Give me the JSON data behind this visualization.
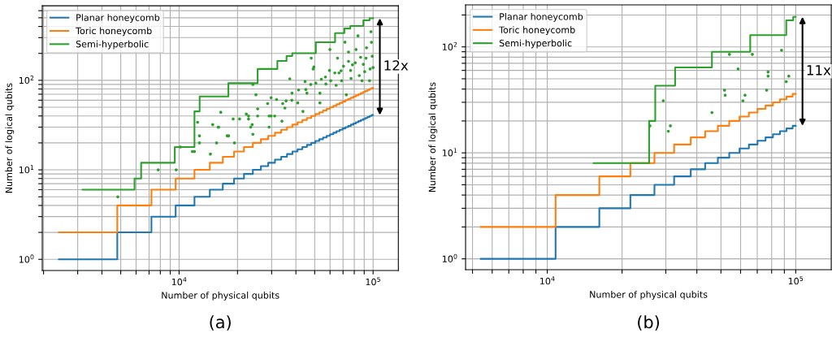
{
  "chart_data": [
    {
      "type": "step",
      "xlabel": "Number of physical qubits",
      "ylabel": "Number of logical qubits",
      "log": "xy",
      "grid": true,
      "legend": "top left",
      "xlim": [
        1970,
        135000
      ],
      "ylim": [
        0.75,
        680
      ],
      "xticks": [
        {
          "value": 2000,
          "label": null
        },
        {
          "value": 3000,
          "label": null
        },
        {
          "value": 4000,
          "label": null
        },
        {
          "value": 5000,
          "label": null
        },
        {
          "value": 6000,
          "label": null
        },
        {
          "value": 7000,
          "label": null
        },
        {
          "value": 8000,
          "label": null
        },
        {
          "value": 9000,
          "label": null
        },
        {
          "value": 10000,
          "label": "10$^{4}$"
        },
        {
          "value": 20000,
          "label": null
        },
        {
          "value": 30000,
          "label": null
        },
        {
          "value": 40000,
          "label": null
        },
        {
          "value": 50000,
          "label": null
        },
        {
          "value": 60000,
          "label": null
        },
        {
          "value": 70000,
          "label": null
        },
        {
          "value": 80000,
          "label": null
        },
        {
          "value": 90000,
          "label": null
        },
        {
          "value": 100000,
          "label": "10$^{5}$"
        }
      ],
      "yticks": [
        {
          "value": 1,
          "label": "10$^{0}$"
        },
        {
          "value": 2,
          "label": null
        },
        {
          "value": 3,
          "label": null
        },
        {
          "value": 4,
          "label": null
        },
        {
          "value": 5,
          "label": null
        },
        {
          "value": 6,
          "label": null
        },
        {
          "value": 7,
          "label": null
        },
        {
          "value": 8,
          "label": null
        },
        {
          "value": 9,
          "label": null
        },
        {
          "value": 10,
          "label": "10$^{1}$"
        },
        {
          "value": 20,
          "label": null
        },
        {
          "value": 30,
          "label": null
        },
        {
          "value": 40,
          "label": null
        },
        {
          "value": 50,
          "label": null
        },
        {
          "value": 60,
          "label": null
        },
        {
          "value": 70,
          "label": null
        },
        {
          "value": 80,
          "label": null
        },
        {
          "value": 90,
          "label": null
        },
        {
          "value": 100,
          "label": "10$^{2}$"
        },
        {
          "value": 200,
          "label": null
        },
        {
          "value": 300,
          "label": null
        },
        {
          "value": 400,
          "label": null
        },
        {
          "value": 500,
          "label": null
        },
        {
          "value": 600,
          "label": null
        }
      ],
      "annotations": [
        "12x",
        "(a)"
      ],
      "series": [
        {
          "name": "Planar honeycomb",
          "color": "#1f77b4",
          "x": [
            2400,
            4800,
            7200,
            9600,
            12000,
            14400,
            16800,
            19200,
            21600,
            24000,
            26400,
            28800,
            31200,
            33600,
            36000,
            38400,
            40800,
            43200,
            45600,
            48000,
            50400,
            52800,
            55200,
            57600,
            60000,
            62400,
            64800,
            67200,
            69600,
            72000,
            74400,
            76800,
            79200,
            81600,
            84000,
            86400,
            88800,
            91200,
            93600,
            96000,
            98400,
            100000
          ],
          "values": [
            1,
            2,
            3,
            4,
            5,
            6,
            7,
            8,
            9,
            10,
            11,
            12,
            13,
            14,
            15,
            16,
            17,
            18,
            19,
            20,
            21,
            22,
            23,
            24,
            25,
            26,
            27,
            28,
            29,
            30,
            31,
            32,
            33,
            34,
            35,
            36,
            37,
            38,
            39,
            40,
            41,
            41
          ]
        },
        {
          "name": "Toric honeycomb",
          "color": "#ff7f0e",
          "x": [
            2400,
            4800,
            7200,
            9600,
            12000,
            14400,
            16800,
            19200,
            21600,
            24000,
            26400,
            28800,
            31200,
            33600,
            36000,
            38400,
            40800,
            43200,
            45600,
            48000,
            50400,
            52800,
            55200,
            57600,
            60000,
            62400,
            64800,
            67200,
            69600,
            72000,
            74400,
            76800,
            79200,
            81600,
            84000,
            86400,
            88800,
            91200,
            93600,
            96000,
            98400,
            100000
          ],
          "values": [
            2,
            4,
            6,
            8,
            10,
            12,
            14,
            16,
            18,
            20,
            22,
            24,
            26,
            28,
            30,
            32,
            34,
            36,
            38,
            40,
            42,
            44,
            46,
            48,
            50,
            52,
            54,
            56,
            58,
            60,
            62,
            64,
            66,
            68,
            70,
            72,
            74,
            76,
            78,
            80,
            82,
            82
          ]
        },
        {
          "name": "Semi-hyperbolic",
          "color": "#2ca02c",
          "x": [
            3180,
            5890,
            6370,
            9500,
            12000,
            12760,
            17950,
            25400,
            32100,
            35800,
            38300,
            50700,
            63700,
            71100,
            76300,
            89100,
            95900,
            100000
          ],
          "values": [
            6,
            8,
            12,
            18,
            45,
            66,
            93,
            134,
            165,
            187,
            201,
            266,
            337,
            379,
            404,
            468,
            494,
            494
          ]
        },
        {
          "type": "scatter",
          "marker": "circle",
          "color": "#2ca02c",
          "x": [
            4830,
            7800,
            9660,
            10160,
            12450,
            12730,
            12730,
            11700,
            12000,
            14500,
            14900,
            15900,
            15600,
            16400,
            16000,
            17700,
            18000,
            19300,
            19000,
            20500,
            22200,
            22800,
            22800,
            23800,
            23400,
            24000,
            24000,
            24900,
            25400,
            25400,
            28600,
            29100,
            29800,
            31100,
            29100,
            29800,
            31800,
            33900,
            34200,
            35100,
            35600,
            37200,
            38200,
            38100,
            40900,
            41300,
            43500,
            44600,
            45000,
            45600,
            47700,
            48000,
            49100,
            49500,
            50700,
            53200,
            53200,
            54100,
            56800,
            57100,
            59600,
            59900,
            60500,
            63500,
            64500,
            65600,
            66700,
            68400,
            68800,
            70400,
            71600,
            72800,
            74700,
            74700,
            76600,
            77000,
            78300,
            80900,
            81700,
            83600,
            84900,
            86200,
            87700,
            89100,
            90500,
            92000,
            92500,
            95900,
            96500,
            97500,
            98100,
            99000,
            100000
          ],
          "values": [
            5,
            10,
            10,
            18,
            34,
            24,
            20,
            16,
            16,
            15,
            32,
            30,
            20,
            44,
            30,
            24,
            24,
            20,
            37,
            37,
            42,
            40,
            37,
            32,
            30,
            25,
            90,
            69,
            48,
            40,
            55,
            40,
            40,
            40,
            30,
            64,
            61,
            35,
            55,
            49,
            59,
            104,
            72,
            60,
            56,
            78,
            45,
            97,
            79,
            72,
            90,
            177,
            134,
            141,
            93,
            72,
            56,
            103,
            109,
            91,
            129,
            221,
            99,
            121,
            88,
            177,
            121,
            128,
            99,
            144,
            267,
            69,
            207,
            163,
            129,
            105,
            149,
            157,
            221,
            314,
            113,
            181,
            99,
            151,
            125,
            177,
            231,
            99,
            134,
            349,
            266,
            186,
            139
          ]
        }
      ]
    },
    {
      "type": "step",
      "xlabel": "Number of physical qubits",
      "ylabel": "Number of logical qubits",
      "log": "xy",
      "grid": true,
      "legend": "top left",
      "xlim": [
        4690,
        139000
      ],
      "ylim": [
        0.79,
        249
      ],
      "xticks": [
        {
          "value": 5000,
          "label": null
        },
        {
          "value": 6000,
          "label": null
        },
        {
          "value": 7000,
          "label": null
        },
        {
          "value": 8000,
          "label": null
        },
        {
          "value": 9000,
          "label": null
        },
        {
          "value": 10000,
          "label": "10$^{4}$"
        },
        {
          "value": 20000,
          "label": null
        },
        {
          "value": 30000,
          "label": null
        },
        {
          "value": 40000,
          "label": null
        },
        {
          "value": 50000,
          "label": null
        },
        {
          "value": 60000,
          "label": null
        },
        {
          "value": 70000,
          "label": null
        },
        {
          "value": 80000,
          "label": null
        },
        {
          "value": 90000,
          "label": null
        },
        {
          "value": 100000,
          "label": "10$^{5}$"
        }
      ],
      "yticks": [
        {
          "value": 1,
          "label": "10$^{0}$"
        },
        {
          "value": 2,
          "label": null
        },
        {
          "value": 3,
          "label": null
        },
        {
          "value": 4,
          "label": null
        },
        {
          "value": 5,
          "label": null
        },
        {
          "value": 6,
          "label": null
        },
        {
          "value": 7,
          "label": null
        },
        {
          "value": 8,
          "label": null
        },
        {
          "value": 9,
          "label": null
        },
        {
          "value": 10,
          "label": "10$^{1}$"
        },
        {
          "value": 20,
          "label": null
        },
        {
          "value": 30,
          "label": null
        },
        {
          "value": 40,
          "label": null
        },
        {
          "value": 50,
          "label": null
        },
        {
          "value": 60,
          "label": null
        },
        {
          "value": 70,
          "label": null
        },
        {
          "value": 80,
          "label": null
        },
        {
          "value": 90,
          "label": null
        },
        {
          "value": 100,
          "label": "10$^{2}$"
        },
        {
          "value": 200,
          "label": null
        }
      ],
      "annotations": [
        "11x",
        "(b)"
      ],
      "series": [
        {
          "name": "Planar honeycomb",
          "color": "#1f77b4",
          "x": [
            5400,
            10800,
            16200,
            21600,
            27000,
            32400,
            37800,
            43200,
            48600,
            54000,
            59400,
            64800,
            70200,
            75600,
            81000,
            86400,
            91800,
            97200,
            100000
          ],
          "values": [
            1,
            2,
            3,
            4,
            5,
            6,
            7,
            8,
            9,
            10,
            11,
            12,
            13,
            14,
            15,
            16,
            17,
            18,
            18
          ]
        },
        {
          "name": "Toric honeycomb",
          "color": "#ff7f0e",
          "x": [
            5400,
            10800,
            16200,
            21600,
            27000,
            32400,
            37800,
            43200,
            48600,
            54000,
            59400,
            64800,
            70200,
            75600,
            81000,
            86400,
            91800,
            97200,
            100000
          ],
          "values": [
            2,
            4,
            6,
            8,
            10,
            12,
            14,
            16,
            18,
            20,
            22,
            24,
            26,
            28,
            30,
            32,
            34,
            36,
            36
          ]
        },
        {
          "name": "Semi-hyperbolic",
          "color": "#2ca02c",
          "x": [
            15370,
            25700,
            27200,
            32700,
            46000,
            65600,
            91600,
            97700,
            100000
          ],
          "values": [
            8,
            20,
            43,
            64,
            90,
            129,
            178,
            192,
            192
          ]
        },
        {
          "type": "scatter",
          "marker": "circle",
          "color": "#2ca02c",
          "x": [
            25900,
            29300,
            30700,
            31300,
            46000,
            51700,
            52000,
            54100,
            58600,
            61300,
            62500,
            66900,
            76400,
            77400,
            77400,
            87700,
            91600,
            93800
          ],
          "values": [
            18,
            31,
            16,
            18,
            24,
            39,
            35,
            85,
            62,
            31,
            35,
            85,
            39,
            58,
            53,
            93,
            47,
            53
          ]
        }
      ]
    }
  ]
}
